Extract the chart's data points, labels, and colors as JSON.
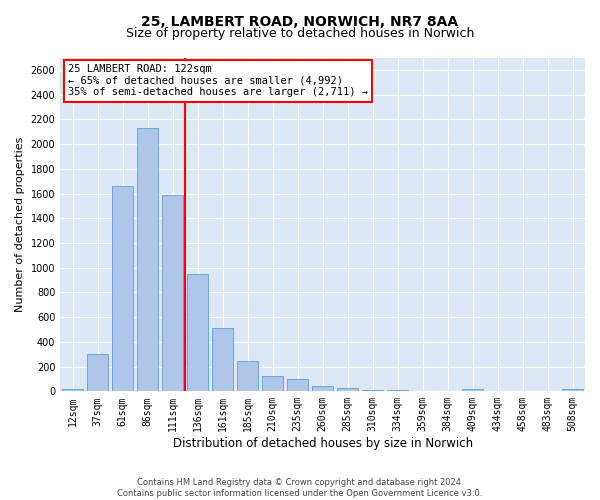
{
  "title": "25, LAMBERT ROAD, NORWICH, NR7 8AA",
  "subtitle": "Size of property relative to detached houses in Norwich",
  "xlabel": "Distribution of detached houses by size in Norwich",
  "ylabel": "Number of detached properties",
  "footer_line1": "Contains HM Land Registry data © Crown copyright and database right 2024.",
  "footer_line2": "Contains public sector information licensed under the Open Government Licence v3.0.",
  "categories": [
    "12sqm",
    "37sqm",
    "61sqm",
    "86sqm",
    "111sqm",
    "136sqm",
    "161sqm",
    "185sqm",
    "210sqm",
    "235sqm",
    "260sqm",
    "285sqm",
    "310sqm",
    "334sqm",
    "359sqm",
    "384sqm",
    "409sqm",
    "434sqm",
    "458sqm",
    "483sqm",
    "508sqm"
  ],
  "values": [
    20,
    300,
    1660,
    2130,
    1590,
    950,
    510,
    245,
    120,
    100,
    45,
    30,
    10,
    10,
    5,
    5,
    20,
    5,
    5,
    5,
    20
  ],
  "bar_color": "#aec6e8",
  "bar_edge_color": "#5a9fd4",
  "vline_x_idx": 4,
  "vline_color": "red",
  "annotation_title": "25 LAMBERT ROAD: 122sqm",
  "annotation_line1": "← 65% of detached houses are smaller (4,992)",
  "annotation_line2": "35% of semi-detached houses are larger (2,711) →",
  "annotation_box_color": "white",
  "annotation_edge_color": "red",
  "ylim": [
    0,
    2700
  ],
  "yticks": [
    0,
    200,
    400,
    600,
    800,
    1000,
    1200,
    1400,
    1600,
    1800,
    2000,
    2200,
    2400,
    2600
  ],
  "plot_background": "#dce8f5",
  "title_fontsize": 10,
  "subtitle_fontsize": 9,
  "ylabel_fontsize": 8,
  "xlabel_fontsize": 8.5,
  "tick_fontsize": 7,
  "annotation_fontsize": 7.5,
  "footer_fontsize": 6
}
